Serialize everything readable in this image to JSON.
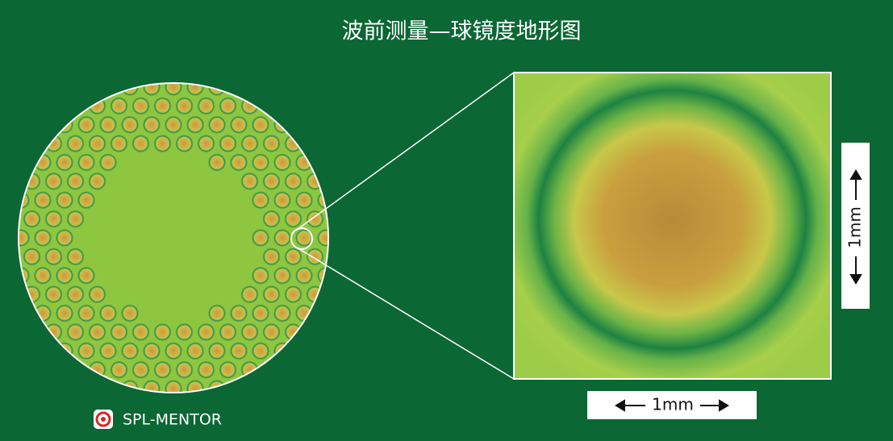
{
  "header": {
    "title": "波前测量—球镜度地形图"
  },
  "scale": {
    "vertical": "1mm",
    "horizontal": "1mm"
  },
  "logo": {
    "text": "SPL-MENTOR"
  }
}
